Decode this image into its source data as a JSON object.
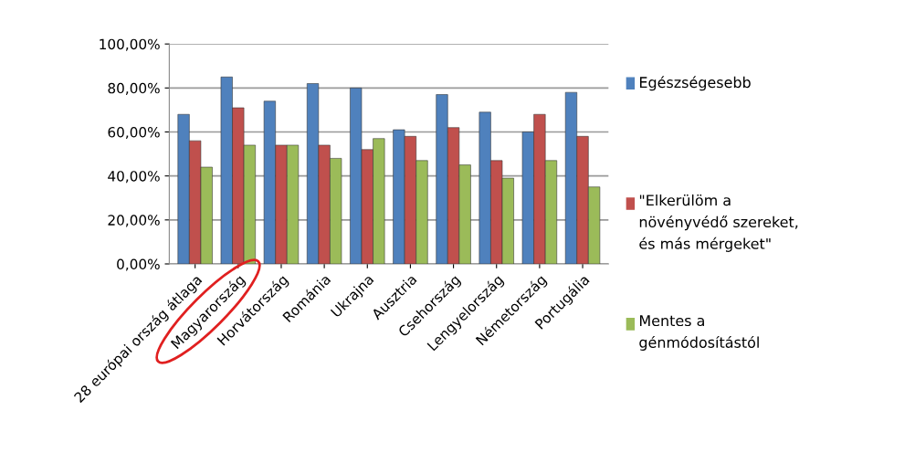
{
  "chart_data": {
    "type": "bar",
    "categories": [
      "28 európai ország átlaga",
      "Magyarország",
      "Horvátország",
      "Románia",
      "Ukrajna",
      "Ausztria",
      "Csehország",
      "Lengyelország",
      "Németország",
      "Portugália"
    ],
    "series": [
      {
        "name": "Egészségesebb",
        "color": "#4f81bd",
        "values": [
          68,
          85,
          74,
          82,
          80,
          61,
          77,
          69,
          60,
          78
        ]
      },
      {
        "name": "\"Elkerülöm a növényvédő szereket, és más mérgeket\"",
        "color": "#c0504d",
        "values": [
          56,
          71,
          54,
          54,
          52,
          58,
          62,
          47,
          68,
          58
        ]
      },
      {
        "name": "Mentes a génmódosítástól",
        "color": "#9bbb59",
        "values": [
          44,
          54,
          54,
          48,
          57,
          47,
          45,
          39,
          47,
          35
        ]
      }
    ],
    "ylim": [
      0,
      100
    ],
    "yticks": [
      {
        "value": 0,
        "label": "0,00%"
      },
      {
        "value": 20,
        "label": "20,00%"
      },
      {
        "value": 40,
        "label": "40,00%"
      },
      {
        "value": 60,
        "label": "60,00%"
      },
      {
        "value": 80,
        "label": "80,00%"
      },
      {
        "value": 100,
        "label": "100,00%"
      }
    ],
    "grid": "y",
    "legend": "right"
  }
}
